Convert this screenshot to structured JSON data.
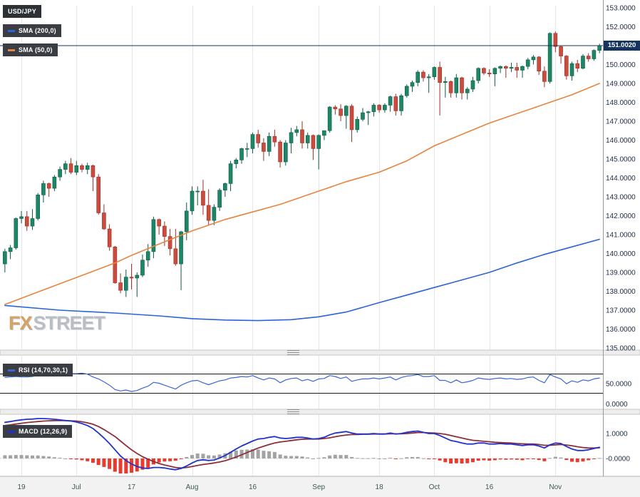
{
  "legend": {
    "symbol": "USD/JPY",
    "sma200": "SMA (200,0)",
    "sma50": "SMA (50,0)",
    "rsi": "RSI (14,70,30,1)",
    "macd": "MACD (12,26,9)"
  },
  "watermark": {
    "fx": "FX",
    "street": "STREET"
  },
  "colors": {
    "candle_up": "#1d8666",
    "candle_up_border": "#0f5a43",
    "candle_down": "#cb4c3f",
    "candle_down_border": "#9c3126",
    "sma200": "#2b63d9",
    "sma50": "#e8833e",
    "rsi": "#3a66d4",
    "macd": "#2133cc",
    "signal": "#8c2f39",
    "hist_pos": "#a3a3a3",
    "hist_neg": "#e83b2e",
    "price_line": "#15335f",
    "grid": "#e6e6e6",
    "level": "#1a1a1a"
  },
  "chart_data": {
    "type": "candlestick",
    "symbol": "USD/JPY",
    "price_axis": {
      "min": 135,
      "max": 153,
      "tick_step": 1,
      "decimals": 4,
      "tick_labels": [
        "153.0000",
        "152.0000",
        "151.0000",
        "150.0000",
        "149.0000",
        "148.0000",
        "147.0000",
        "146.0000",
        "145.0000",
        "144.0000",
        "143.0000",
        "142.0000",
        "141.0000",
        "140.0000",
        "139.0000",
        "138.0000",
        "137.0000",
        "136.0000",
        "135.0000"
      ]
    },
    "x_ticks": [
      {
        "label": "19",
        "index": 3
      },
      {
        "label": "Jul",
        "index": 13
      },
      {
        "label": "17",
        "index": 23
      },
      {
        "label": "Aug",
        "index": 34
      },
      {
        "label": "16",
        "index": 45
      },
      {
        "label": "Sep",
        "index": 57
      },
      {
        "label": "18",
        "index": 68
      },
      {
        "label": "Oct",
        "index": 78
      },
      {
        "label": "16",
        "index": 88
      },
      {
        "label": "Nov",
        "index": 100
      }
    ],
    "price_line": {
      "value": 151.002,
      "label": "151.0020"
    },
    "candles": [
      [
        139.45,
        140.25,
        139.0,
        140.1
      ],
      [
        140.1,
        140.45,
        139.7,
        140.3
      ],
      [
        140.3,
        141.9,
        140.2,
        141.85
      ],
      [
        141.85,
        142.25,
        141.6,
        141.95
      ],
      [
        141.95,
        142.25,
        141.2,
        141.45
      ],
      [
        141.45,
        142.35,
        141.25,
        141.85
      ],
      [
        141.85,
        143.2,
        141.75,
        143.1
      ],
      [
        143.1,
        143.85,
        142.7,
        143.7
      ],
      [
        143.7,
        143.75,
        143.0,
        143.45
      ],
      [
        143.45,
        144.15,
        143.3,
        144.05
      ],
      [
        144.05,
        144.6,
        143.85,
        144.45
      ],
      [
        144.45,
        144.9,
        144.2,
        144.75
      ],
      [
        144.75,
        145.05,
        144.2,
        144.3
      ],
      [
        144.3,
        144.9,
        144.15,
        144.65
      ],
      [
        144.65,
        144.75,
        144.3,
        144.45
      ],
      [
        144.45,
        144.8,
        144.2,
        144.65
      ],
      [
        144.65,
        144.7,
        143.3,
        144.05
      ],
      [
        144.05,
        144.2,
        142.05,
        142.15
      ],
      [
        142.15,
        142.6,
        141.25,
        141.3
      ],
      [
        141.3,
        141.55,
        140.15,
        140.35
      ],
      [
        140.35,
        140.4,
        138.4,
        138.45
      ],
      [
        138.45,
        138.95,
        137.9,
        138.05
      ],
      [
        138.05,
        139.15,
        137.7,
        138.75
      ],
      [
        138.75,
        139.45,
        138.1,
        138.7
      ],
      [
        138.7,
        139.0,
        137.7,
        138.85
      ],
      [
        138.85,
        139.95,
        138.75,
        139.65
      ],
      [
        139.65,
        140.5,
        139.3,
        140.1
      ],
      [
        140.1,
        141.95,
        139.75,
        141.8
      ],
      [
        141.8,
        141.85,
        141.0,
        141.45
      ],
      [
        141.45,
        141.7,
        140.4,
        140.9
      ],
      [
        140.9,
        141.3,
        139.9,
        140.25
      ],
      [
        140.25,
        141.3,
        139.35,
        139.45
      ],
      [
        139.45,
        141.2,
        138.05,
        141.15
      ],
      [
        141.15,
        142.7,
        140.7,
        142.25
      ],
      [
        142.25,
        143.55,
        142.05,
        143.3
      ],
      [
        143.3,
        143.55,
        142.55,
        143.3
      ],
      [
        143.3,
        143.9,
        142.05,
        142.55
      ],
      [
        142.55,
        143.4,
        141.5,
        141.75
      ],
      [
        141.75,
        142.6,
        141.5,
        142.45
      ],
      [
        142.45,
        143.45,
        142.25,
        143.35
      ],
      [
        143.35,
        143.75,
        143.0,
        143.7
      ],
      [
        143.7,
        144.9,
        143.3,
        144.75
      ],
      [
        144.75,
        145.05,
        144.5,
        144.95
      ],
      [
        144.95,
        145.6,
        144.75,
        145.55
      ],
      [
        145.55,
        145.85,
        145.1,
        145.55
      ],
      [
        145.55,
        146.4,
        145.3,
        146.3
      ],
      [
        146.3,
        146.55,
        145.6,
        145.85
      ],
      [
        145.85,
        146.1,
        144.9,
        145.4
      ],
      [
        145.4,
        146.4,
        145.15,
        146.2
      ],
      [
        146.2,
        146.55,
        145.65,
        145.9
      ],
      [
        145.9,
        146.0,
        144.55,
        144.85
      ],
      [
        144.85,
        146.0,
        144.65,
        145.85
      ],
      [
        145.85,
        146.65,
        145.3,
        146.4
      ],
      [
        146.4,
        146.75,
        146.2,
        146.55
      ],
      [
        146.55,
        147.0,
        145.55,
        145.85
      ],
      [
        145.85,
        146.4,
        145.55,
        146.25
      ],
      [
        146.25,
        146.3,
        144.95,
        145.55
      ],
      [
        145.55,
        146.3,
        144.45,
        146.25
      ],
      [
        146.25,
        146.5,
        146.0,
        146.5
      ],
      [
        146.5,
        147.8,
        146.4,
        147.75
      ],
      [
        147.75,
        147.85,
        147.35,
        147.65
      ],
      [
        147.65,
        147.9,
        147.0,
        147.3
      ],
      [
        147.3,
        147.85,
        146.6,
        147.8
      ],
      [
        147.8,
        147.9,
        145.9,
        146.55
      ],
      [
        146.55,
        147.25,
        146.4,
        147.1
      ],
      [
        147.1,
        147.7,
        147.0,
        147.45
      ],
      [
        147.45,
        147.55,
        146.8,
        147.5
      ],
      [
        147.5,
        147.95,
        147.25,
        147.85
      ],
      [
        147.85,
        147.9,
        147.45,
        147.6
      ],
      [
        147.6,
        147.95,
        147.45,
        147.85
      ],
      [
        147.85,
        148.35,
        147.5,
        148.3
      ],
      [
        148.3,
        148.45,
        147.3,
        147.55
      ],
      [
        147.55,
        148.45,
        147.3,
        148.35
      ],
      [
        148.35,
        148.95,
        148.25,
        148.85
      ],
      [
        148.85,
        149.15,
        148.55,
        149.05
      ],
      [
        149.05,
        149.7,
        148.85,
        149.6
      ],
      [
        149.6,
        149.7,
        149.1,
        149.3
      ],
      [
        149.3,
        149.5,
        148.5,
        149.35
      ],
      [
        149.35,
        149.9,
        149.2,
        149.85
      ],
      [
        149.85,
        150.15,
        147.3,
        149.05
      ],
      [
        149.05,
        149.35,
        148.25,
        149.1
      ],
      [
        149.1,
        149.15,
        148.25,
        148.5
      ],
      [
        148.5,
        149.5,
        148.25,
        149.3
      ],
      [
        149.3,
        149.35,
        148.15,
        148.5
      ],
      [
        148.5,
        148.8,
        148.15,
        148.7
      ],
      [
        148.7,
        149.35,
        148.55,
        149.15
      ],
      [
        149.15,
        149.85,
        149.0,
        149.8
      ],
      [
        149.8,
        149.85,
        149.45,
        149.55
      ],
      [
        149.55,
        149.75,
        149.35,
        149.5
      ],
      [
        149.5,
        149.85,
        148.85,
        149.8
      ],
      [
        149.8,
        149.95,
        149.55,
        149.9
      ],
      [
        149.9,
        149.95,
        149.3,
        149.8
      ],
      [
        149.8,
        150.1,
        149.6,
        149.85
      ],
      [
        149.85,
        150.1,
        149.3,
        149.7
      ],
      [
        149.7,
        149.95,
        149.3,
        149.9
      ],
      [
        149.9,
        150.35,
        149.75,
        150.25
      ],
      [
        150.25,
        150.5,
        150.0,
        150.4
      ],
      [
        150.4,
        150.45,
        149.45,
        149.65
      ],
      [
        149.65,
        149.9,
        148.8,
        149.1
      ],
      [
        149.1,
        151.7,
        149.0,
        151.65
      ],
      [
        151.65,
        151.75,
        150.65,
        150.95
      ],
      [
        150.95,
        151.0,
        150.05,
        150.45
      ],
      [
        150.45,
        150.5,
        149.2,
        149.4
      ],
      [
        149.4,
        150.15,
        149.15,
        150.05
      ],
      [
        150.05,
        150.25,
        149.6,
        149.8
      ],
      [
        149.8,
        150.55,
        149.75,
        150.45
      ],
      [
        150.45,
        150.6,
        150.15,
        150.3
      ],
      [
        150.3,
        150.8,
        150.2,
        150.75
      ],
      [
        150.75,
        151.1,
        150.6,
        151.0
      ]
    ],
    "overlays": {
      "sma200": {
        "points": [
          [
            0,
            137.25
          ],
          [
            10,
            137.0
          ],
          [
            20,
            136.85
          ],
          [
            28,
            136.7
          ],
          [
            34,
            136.55
          ],
          [
            40,
            136.48
          ],
          [
            46,
            136.45
          ],
          [
            52,
            136.5
          ],
          [
            57,
            136.65
          ],
          [
            62,
            136.9
          ],
          [
            68,
            137.4
          ],
          [
            73,
            137.8
          ],
          [
            78,
            138.2
          ],
          [
            83,
            138.6
          ],
          [
            88,
            139.0
          ],
          [
            93,
            139.5
          ],
          [
            98,
            139.95
          ],
          [
            103,
            140.35
          ],
          [
            108,
            140.75
          ]
        ]
      },
      "sma50": {
        "points": [
          [
            0,
            137.3
          ],
          [
            10,
            138.4
          ],
          [
            20,
            139.5
          ],
          [
            23,
            139.9
          ],
          [
            28,
            140.5
          ],
          [
            34,
            141.2
          ],
          [
            40,
            141.8
          ],
          [
            45,
            142.2
          ],
          [
            50,
            142.6
          ],
          [
            57,
            143.3
          ],
          [
            62,
            143.8
          ],
          [
            68,
            144.3
          ],
          [
            73,
            144.9
          ],
          [
            78,
            145.7
          ],
          [
            83,
            146.3
          ],
          [
            88,
            146.9
          ],
          [
            93,
            147.4
          ],
          [
            98,
            147.9
          ],
          [
            103,
            148.4
          ],
          [
            108,
            149.0
          ]
        ]
      }
    },
    "panels": {
      "rsi": {
        "label": "RSI (14,70,30,1)",
        "levels": [
          70,
          30
        ],
        "ticks": [
          {
            "label": "50.0000",
            "value": 50
          },
          {
            "label": "0.0000",
            "value": 0
          }
        ],
        "values": [
          63,
          64,
          65,
          64,
          64,
          65,
          68,
          67,
          67,
          68,
          69,
          70,
          71,
          71,
          72,
          70,
          64,
          60,
          54,
          47,
          38,
          35,
          37,
          34,
          36,
          41,
          45,
          53,
          51,
          47,
          43,
          39,
          47,
          52,
          56,
          57,
          52,
          48,
          52,
          56,
          58,
          62,
          63,
          65,
          64,
          67,
          62,
          58,
          62,
          60,
          52,
          58,
          61,
          62,
          56,
          59,
          55,
          60,
          61,
          67,
          65,
          61,
          64,
          55,
          58,
          60,
          60,
          62,
          60,
          62,
          64,
          58,
          63,
          66,
          67,
          69,
          65,
          65,
          67,
          57,
          57,
          52,
          58,
          52,
          54,
          57,
          62,
          60,
          59,
          61,
          62,
          60,
          61,
          59,
          60,
          63,
          64,
          57,
          52,
          69,
          64,
          60,
          50,
          56,
          53,
          58,
          56,
          60,
          62
        ]
      },
      "macd": {
        "label": "MACD (12,26,9)",
        "ticks": [
          {
            "label": "1.0000",
            "value": 1
          },
          {
            "label": "-0.0000",
            "value": 0
          }
        ],
        "macd": [
          1.45,
          1.48,
          1.52,
          1.55,
          1.57,
          1.58,
          1.6,
          1.6,
          1.59,
          1.57,
          1.55,
          1.52,
          1.5,
          1.46,
          1.4,
          1.32,
          1.2,
          1.02,
          0.82,
          0.6,
          0.35,
          0.1,
          -0.08,
          -0.22,
          -0.32,
          -0.38,
          -0.4,
          -0.36,
          -0.36,
          -0.38,
          -0.42,
          -0.45,
          -0.4,
          -0.3,
          -0.18,
          -0.08,
          -0.05,
          -0.08,
          -0.06,
          0.02,
          0.12,
          0.25,
          0.38,
          0.5,
          0.6,
          0.7,
          0.78,
          0.8,
          0.85,
          0.88,
          0.82,
          0.8,
          0.82,
          0.85,
          0.85,
          0.82,
          0.78,
          0.8,
          0.85,
          0.95,
          1.02,
          1.05,
          1.08,
          1.02,
          0.98,
          0.98,
          0.98,
          1.0,
          0.98,
          0.98,
          1.02,
          0.98,
          1.0,
          1.05,
          1.08,
          1.1,
          1.05,
          1.0,
          1.0,
          0.92,
          0.82,
          0.72,
          0.68,
          0.62,
          0.58,
          0.58,
          0.62,
          0.62,
          0.58,
          0.58,
          0.6,
          0.58,
          0.58,
          0.55,
          0.52,
          0.55,
          0.55,
          0.5,
          0.42,
          0.55,
          0.62,
          0.6,
          0.48,
          0.38,
          0.32,
          0.32,
          0.35,
          0.4,
          0.45
        ],
        "signal": [
          1.32,
          1.35,
          1.38,
          1.41,
          1.44,
          1.46,
          1.48,
          1.5,
          1.51,
          1.52,
          1.52,
          1.52,
          1.51,
          1.5,
          1.47,
          1.43,
          1.37,
          1.28,
          1.16,
          1.02,
          0.88,
          0.7,
          0.52,
          0.35,
          0.2,
          0.07,
          -0.03,
          -0.12,
          -0.2,
          -0.26,
          -0.31,
          -0.36,
          -0.38,
          -0.36,
          -0.32,
          -0.28,
          -0.24,
          -0.21,
          -0.18,
          -0.14,
          -0.09,
          -0.02,
          0.06,
          0.15,
          0.24,
          0.33,
          0.42,
          0.49,
          0.56,
          0.62,
          0.66,
          0.69,
          0.72,
          0.75,
          0.77,
          0.78,
          0.78,
          0.78,
          0.8,
          0.83,
          0.87,
          0.91,
          0.94,
          0.96,
          0.96,
          0.97,
          0.97,
          0.98,
          0.98,
          0.98,
          0.99,
          0.99,
          0.99,
          1.0,
          1.02,
          1.04,
          1.04,
          1.03,
          1.02,
          1.0,
          0.97,
          0.92,
          0.87,
          0.82,
          0.77,
          0.73,
          0.71,
          0.69,
          0.67,
          0.65,
          0.64,
          0.63,
          0.62,
          0.6,
          0.59,
          0.58,
          0.58,
          0.56,
          0.53,
          0.53,
          0.55,
          0.56,
          0.54,
          0.51,
          0.47,
          0.44,
          0.42,
          0.42,
          0.43
        ]
      }
    }
  }
}
